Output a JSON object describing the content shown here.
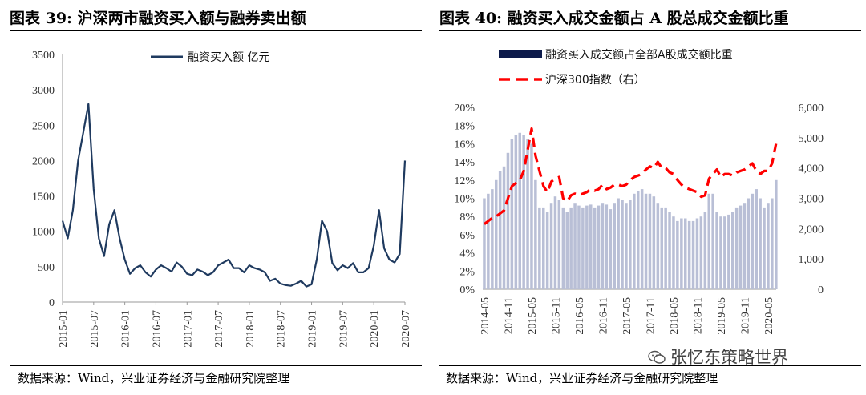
{
  "left": {
    "title": "图表 39:  沪深两市融资买入额与融券卖出额",
    "source": "数据来源：Wind，兴业证券经济与金融研究院整理"
  },
  "right": {
    "title": "图表 40:  融资买入成交金额占 A 股总成交金额比重",
    "source": "数据来源：Wind，兴业证券经济与金融研究院整理"
  },
  "watermark": {
    "text": "张忆东策略世界",
    "icon": "wechat-icon"
  },
  "chart_data": [
    {
      "type": "line",
      "title": "",
      "xlabel": "",
      "ylabel": "",
      "ylim": [
        0,
        3500
      ],
      "yticks": [
        "0",
        "500",
        "1000",
        "1500",
        "2000",
        "2500",
        "3000",
        "3500"
      ],
      "xticks": [
        "2015-01",
        "2015-07",
        "2016-01",
        "2016-07",
        "2017-01",
        "2017-07",
        "2018-01",
        "2018-07",
        "2019-01",
        "2019-07",
        "2020-01",
        "2020-07"
      ],
      "grid": false,
      "legend_position": "top",
      "colors": {
        "line": "#1f3a5f"
      },
      "series": [
        {
          "name": "融资买入额  亿元",
          "x": [
            "2015-01",
            "2015-02",
            "2015-03",
            "2015-04",
            "2015-05",
            "2015-06",
            "2015-07",
            "2015-08",
            "2015-09",
            "2015-10",
            "2015-11",
            "2015-12",
            "2016-01",
            "2016-02",
            "2016-03",
            "2016-04",
            "2016-05",
            "2016-06",
            "2016-07",
            "2016-08",
            "2016-09",
            "2016-10",
            "2016-11",
            "2016-12",
            "2017-01",
            "2017-02",
            "2017-03",
            "2017-04",
            "2017-05",
            "2017-06",
            "2017-07",
            "2017-08",
            "2017-09",
            "2017-10",
            "2017-11",
            "2017-12",
            "2018-01",
            "2018-02",
            "2018-03",
            "2018-04",
            "2018-05",
            "2018-06",
            "2018-07",
            "2018-08",
            "2018-09",
            "2018-10",
            "2018-11",
            "2018-12",
            "2019-01",
            "2019-02",
            "2019-03",
            "2019-04",
            "2019-05",
            "2019-06",
            "2019-07",
            "2019-08",
            "2019-09",
            "2019-10",
            "2019-11",
            "2019-12",
            "2020-01",
            "2020-02",
            "2020-03",
            "2020-04",
            "2020-05",
            "2020-06",
            "2020-07"
          ],
          "values": [
            1150,
            900,
            1300,
            2000,
            2400,
            2800,
            1600,
            900,
            650,
            1100,
            1300,
            900,
            600,
            400,
            480,
            520,
            420,
            360,
            460,
            520,
            480,
            430,
            560,
            500,
            400,
            380,
            460,
            430,
            380,
            420,
            520,
            560,
            600,
            480,
            480,
            420,
            520,
            480,
            460,
            420,
            300,
            330,
            260,
            240,
            230,
            260,
            300,
            220,
            250,
            600,
            1150,
            1000,
            550,
            450,
            520,
            480,
            550,
            420,
            420,
            480,
            800,
            1300,
            760,
            600,
            560,
            680,
            2000
          ]
        }
      ]
    },
    {
      "type": "bar",
      "title": "",
      "xlabel": "",
      "ylabel": "",
      "ylim": [
        0,
        20
      ],
      "y2lim": [
        0,
        6000
      ],
      "yticks": [
        "0%",
        "2%",
        "4%",
        "6%",
        "8%",
        "10%",
        "12%",
        "14%",
        "16%",
        "18%",
        "20%"
      ],
      "y2ticks": [
        "0",
        "1,000",
        "2,000",
        "3,000",
        "4,000",
        "5,000",
        "6,000"
      ],
      "xticks": [
        "2014-05",
        "2014-11",
        "2015-05",
        "2015-11",
        "2016-05",
        "2016-11",
        "2017-05",
        "2017-11",
        "2018-05",
        "2018-11",
        "2019-05",
        "2019-11",
        "2020-05"
      ],
      "grid": false,
      "legend_position": "top",
      "colors": {
        "bars": "#b9bfd6",
        "legend_bar": "#0c1a4a",
        "line": "#ff0000"
      },
      "series": [
        {
          "name": "融资买入成交额占全部A股成交额比重",
          "axis": "left",
          "unit": "%",
          "x": [
            "2014-05",
            "2014-06",
            "2014-07",
            "2014-08",
            "2014-09",
            "2014-10",
            "2014-11",
            "2014-12",
            "2015-01",
            "2015-02",
            "2015-03",
            "2015-04",
            "2015-05",
            "2015-06",
            "2015-07",
            "2015-08",
            "2015-09",
            "2015-10",
            "2015-11",
            "2015-12",
            "2016-01",
            "2016-02",
            "2016-03",
            "2016-04",
            "2016-05",
            "2016-06",
            "2016-07",
            "2016-08",
            "2016-09",
            "2016-10",
            "2016-11",
            "2016-12",
            "2017-01",
            "2017-02",
            "2017-03",
            "2017-04",
            "2017-05",
            "2017-06",
            "2017-07",
            "2017-08",
            "2017-09",
            "2017-10",
            "2017-11",
            "2017-12",
            "2018-01",
            "2018-02",
            "2018-03",
            "2018-04",
            "2018-05",
            "2018-06",
            "2018-07",
            "2018-08",
            "2018-09",
            "2018-10",
            "2018-11",
            "2018-12",
            "2019-01",
            "2019-02",
            "2019-03",
            "2019-04",
            "2019-05",
            "2019-06",
            "2019-07",
            "2019-08",
            "2019-09",
            "2019-10",
            "2019-11",
            "2019-12",
            "2020-01",
            "2020-02",
            "2020-03",
            "2020-04",
            "2020-05",
            "2020-06",
            "2020-07"
          ],
          "values": [
            10,
            10.5,
            11,
            12,
            13,
            13.5,
            15,
            16.5,
            17,
            17.2,
            17,
            16.5,
            16,
            12,
            9,
            9,
            8.5,
            9.5,
            10.2,
            9.8,
            9,
            8.5,
            9,
            9.5,
            9.2,
            9,
            9.2,
            9.3,
            9,
            9.2,
            9.5,
            9.3,
            8.8,
            9.5,
            10,
            9.8,
            9.5,
            9.8,
            10.5,
            10.8,
            11,
            10.5,
            10.5,
            10.2,
            9.5,
            9,
            9,
            8.5,
            8,
            7.5,
            7.8,
            7.8,
            7.5,
            7.5,
            7.8,
            8,
            8.5,
            10.5,
            10.5,
            8.5,
            8,
            8,
            8.2,
            8.5,
            9,
            9.2,
            9.5,
            10,
            10.5,
            11,
            10,
            9,
            9.5,
            10,
            12
          ]
        },
        {
          "name": "沪深300指数（右）",
          "axis": "right",
          "x": [
            "2014-05",
            "2014-06",
            "2014-07",
            "2014-08",
            "2014-09",
            "2014-10",
            "2014-11",
            "2014-12",
            "2015-01",
            "2015-02",
            "2015-03",
            "2015-04",
            "2015-05",
            "2015-06",
            "2015-07",
            "2015-08",
            "2015-09",
            "2015-10",
            "2015-11",
            "2015-12",
            "2016-01",
            "2016-02",
            "2016-03",
            "2016-04",
            "2016-05",
            "2016-06",
            "2016-07",
            "2016-08",
            "2016-09",
            "2016-10",
            "2016-11",
            "2016-12",
            "2017-01",
            "2017-02",
            "2017-03",
            "2017-04",
            "2017-05",
            "2017-06",
            "2017-07",
            "2017-08",
            "2017-09",
            "2017-10",
            "2017-11",
            "2017-12",
            "2018-01",
            "2018-02",
            "2018-03",
            "2018-04",
            "2018-05",
            "2018-06",
            "2018-07",
            "2018-08",
            "2018-09",
            "2018-10",
            "2018-11",
            "2018-12",
            "2019-01",
            "2019-02",
            "2019-03",
            "2019-04",
            "2019-05",
            "2019-06",
            "2019-07",
            "2019-08",
            "2019-09",
            "2019-10",
            "2019-11",
            "2019-12",
            "2020-01",
            "2020-02",
            "2020-03",
            "2020-04",
            "2020-05",
            "2020-06",
            "2020-07"
          ],
          "values": [
            2150,
            2250,
            2350,
            2400,
            2500,
            2600,
            3000,
            3400,
            3500,
            3600,
            3900,
            4600,
            5300,
            4400,
            3900,
            3400,
            3200,
            3550,
            3650,
            3700,
            3000,
            2900,
            3100,
            3150,
            3100,
            3150,
            3200,
            3300,
            3250,
            3300,
            3450,
            3300,
            3350,
            3450,
            3450,
            3400,
            3450,
            3600,
            3700,
            3750,
            3800,
            3950,
            4050,
            4000,
            4200,
            4000,
            4000,
            3850,
            3800,
            3600,
            3450,
            3350,
            3300,
            3250,
            3200,
            3050,
            3100,
            3650,
            3800,
            3950,
            3700,
            3800,
            3800,
            3750,
            3850,
            3900,
            3950,
            4050,
            4150,
            3900,
            3800,
            3900,
            3900,
            4150,
            4800
          ]
        }
      ]
    }
  ]
}
